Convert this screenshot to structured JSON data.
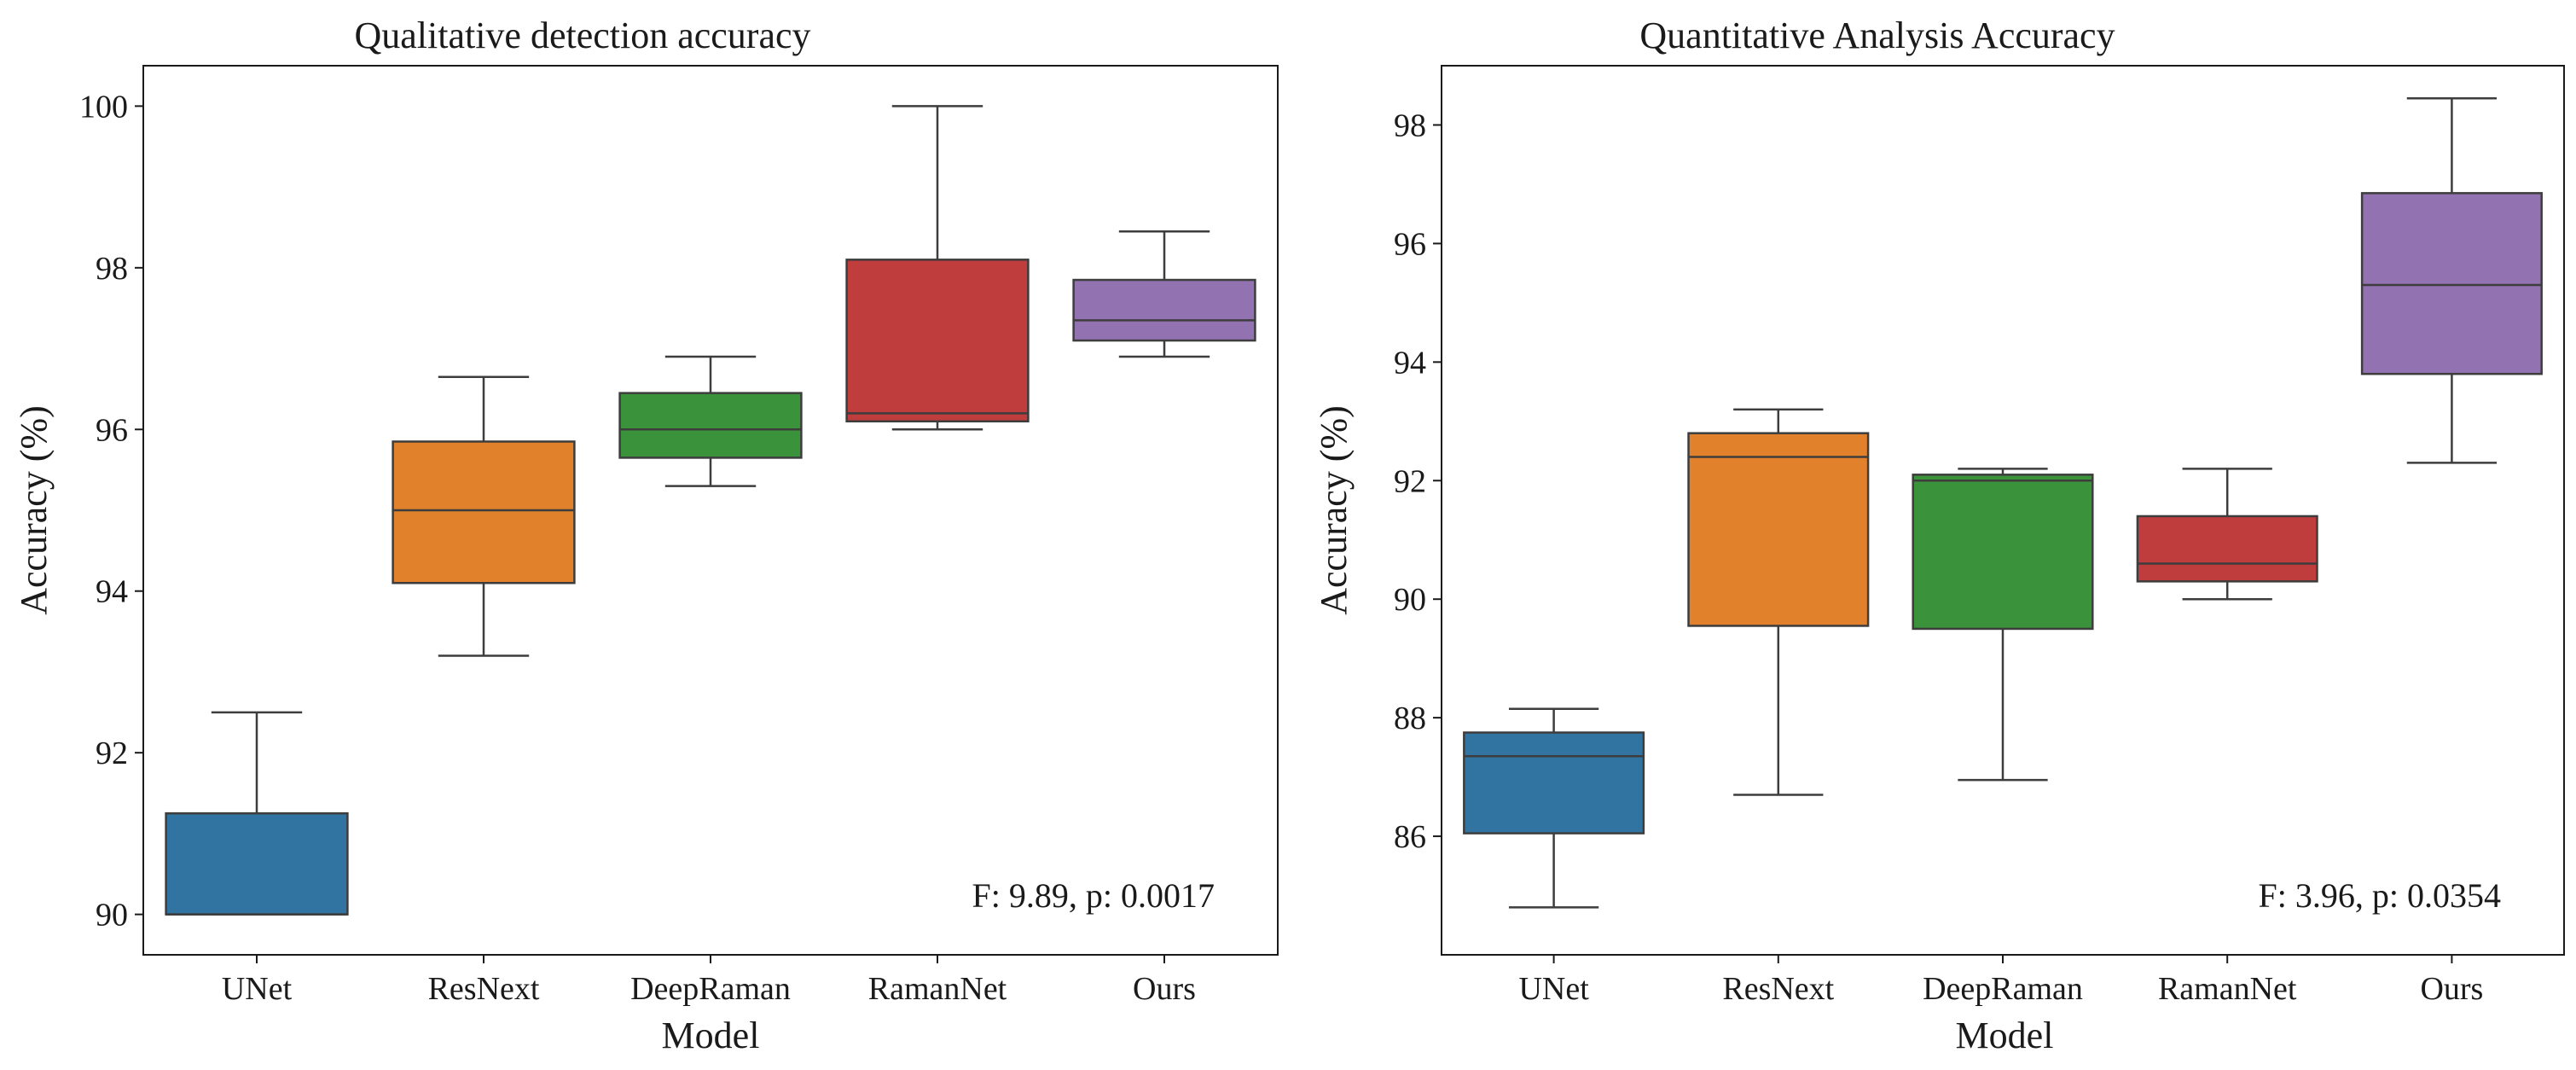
{
  "chart_data": [
    {
      "type": "box",
      "title": "Qualitative detection accuracy",
      "xlabel": "Model",
      "ylabel": "Accuracy (%)",
      "ylim": [
        89.5,
        100.5
      ],
      "yticks": [
        90,
        92,
        94,
        96,
        98,
        100
      ],
      "categories": [
        "UNet",
        "ResNext",
        "DeepRaman",
        "RamanNet",
        "Ours"
      ],
      "colors": [
        "#3274a1",
        "#e1812c",
        "#3a923a",
        "#c03d3e",
        "#9372b2"
      ],
      "boxes": [
        {
          "min": 90.0,
          "q1": 90.0,
          "median": 90.0,
          "q3": 91.25,
          "max": 92.5
        },
        {
          "min": 93.2,
          "q1": 94.1,
          "median": 95.0,
          "q3": 95.85,
          "max": 96.65
        },
        {
          "min": 95.3,
          "q1": 95.65,
          "median": 96.0,
          "q3": 96.45,
          "max": 96.9
        },
        {
          "min": 96.0,
          "q1": 96.1,
          "median": 96.2,
          "q3": 98.1,
          "max": 100.0
        },
        {
          "min": 96.9,
          "q1": 97.1,
          "median": 97.35,
          "q3": 97.85,
          "max": 98.45
        }
      ],
      "annotation": "F: 9.89, p: 0.0017"
    },
    {
      "type": "box",
      "title": "Quantitative Analysis Accuracy",
      "xlabel": "Model",
      "ylabel": "Accuracy (%)",
      "ylim": [
        84.0,
        99.0
      ],
      "yticks": [
        86,
        88,
        90,
        92,
        94,
        96,
        98
      ],
      "categories": [
        "UNet",
        "ResNext",
        "DeepRaman",
        "RamanNet",
        "Ours"
      ],
      "colors": [
        "#3274a1",
        "#e1812c",
        "#3a923a",
        "#c03d3e",
        "#9372b2"
      ],
      "boxes": [
        {
          "min": 84.8,
          "q1": 86.05,
          "median": 87.35,
          "q3": 87.75,
          "max": 88.15
        },
        {
          "min": 86.7,
          "q1": 89.55,
          "median": 92.4,
          "q3": 92.8,
          "max": 93.2
        },
        {
          "min": 86.95,
          "q1": 89.5,
          "median": 92.0,
          "q3": 92.1,
          "max": 92.2
        },
        {
          "min": 90.0,
          "q1": 90.3,
          "median": 90.6,
          "q3": 91.4,
          "max": 92.2
        },
        {
          "min": 92.3,
          "q1": 93.8,
          "median": 95.3,
          "q3": 96.85,
          "max": 98.45
        }
      ],
      "annotation": "F: 3.96, p: 0.0354"
    }
  ]
}
